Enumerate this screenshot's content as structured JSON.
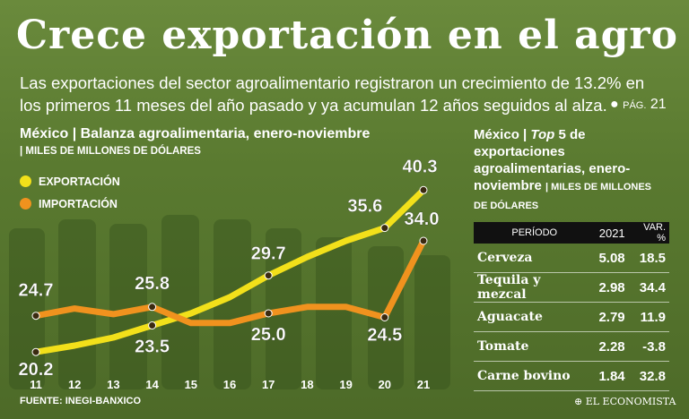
{
  "headline": "Crece exportación en el agro",
  "subtitle": "Las exportaciones del sector agroalimentario registraron un crecimiento de 13.2% en los primeros 11 meses del año pasado y ya acumulan 12 años seguidos al alza.",
  "page_ref": {
    "label": "PÁG.",
    "number": "21"
  },
  "left_panel": {
    "title": "México | Balanza agroalimentaria, enero-noviembre",
    "units": "| MILES DE MILLONES DE DÓLARES",
    "source": "FUENTE: INEGI-BANXICO"
  },
  "colors": {
    "export": "#f2e01a",
    "import": "#f0921e",
    "background": "#5f7a35",
    "point": "#3a2a10"
  },
  "chart_data": {
    "type": "line",
    "title": "México | Balanza agroalimentaria, enero-noviembre",
    "ylabel": "MILES DE MILLONES DE DÓLARES",
    "x": [
      "11",
      "12",
      "13",
      "14",
      "15",
      "16",
      "17",
      "18",
      "19",
      "20",
      "21"
    ],
    "ylim": [
      15,
      45
    ],
    "series": [
      {
        "name": "EXPORTACIÓN",
        "values": [
          20.2,
          21.0,
          22.0,
          23.5,
          25.0,
          27.0,
          29.7,
          32.0,
          34.0,
          35.6,
          40.3
        ]
      },
      {
        "name": "IMPORTACIÓN",
        "values": [
          24.7,
          25.6,
          24.9,
          25.8,
          23.8,
          23.8,
          25.0,
          25.8,
          25.8,
          24.5,
          34.0
        ]
      }
    ],
    "data_labels": [
      {
        "series": 0,
        "index": 0,
        "text": "20.2"
      },
      {
        "series": 0,
        "index": 3,
        "text": "23.5"
      },
      {
        "series": 0,
        "index": 6,
        "text": "29.7"
      },
      {
        "series": 0,
        "index": 9,
        "text": "35.6"
      },
      {
        "series": 0,
        "index": 10,
        "text": "40.3"
      },
      {
        "series": 1,
        "index": 0,
        "text": "24.7"
      },
      {
        "series": 1,
        "index": 3,
        "text": "25.8"
      },
      {
        "series": 1,
        "index": 6,
        "text": "25.0"
      },
      {
        "series": 1,
        "index": 9,
        "text": "24.5"
      },
      {
        "series": 1,
        "index": 10,
        "text": "34.0"
      }
    ]
  },
  "right_panel": {
    "title_prefix": "México | ",
    "title_italic": "Top",
    "title_rest": " 5 de exportaciones agroalimentarias, enero-noviembre",
    "units": "| MILES DE MILLONES DE DÓLARES",
    "table": {
      "headers": [
        "PERÍODO",
        "2021",
        "VAR. %"
      ],
      "rows": [
        [
          "Cerveza",
          "5.08",
          "18.5"
        ],
        [
          "Tequila y mezcal",
          "2.98",
          "34.4"
        ],
        [
          "Aguacate",
          "2.79",
          "11.9"
        ],
        [
          "Tomate",
          "2.28",
          "-3.8"
        ],
        [
          "Carne bovino",
          "1.84",
          "32.8"
        ]
      ]
    }
  },
  "brand": "EL ECONOMISTA"
}
